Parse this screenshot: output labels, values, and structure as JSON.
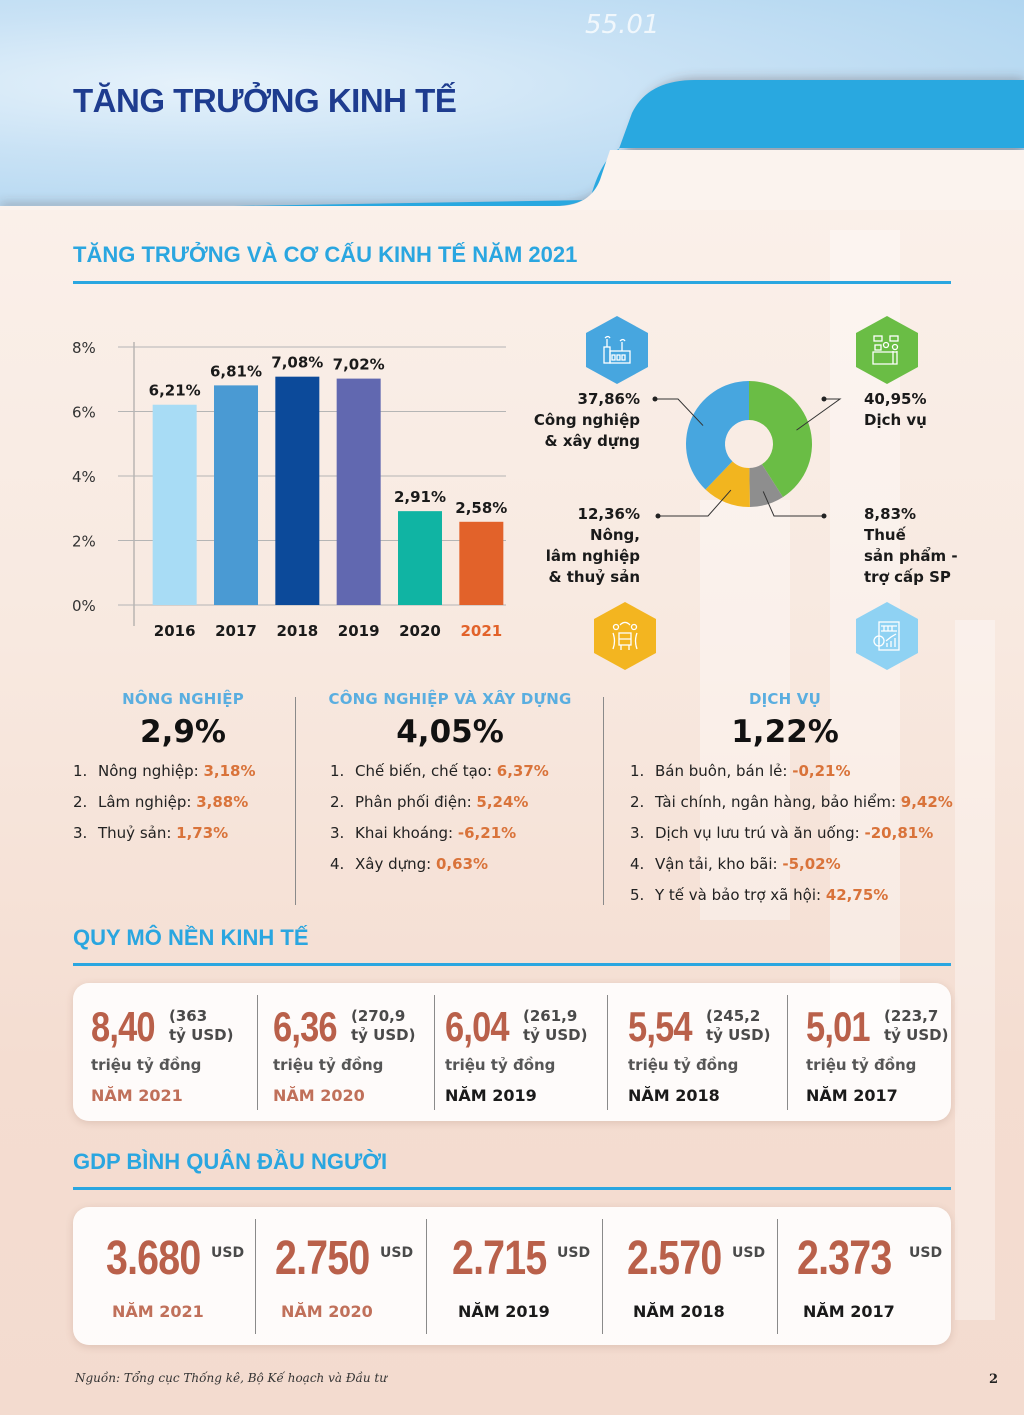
{
  "header": {
    "title": "TĂNG TRƯỞNG KINH TẾ",
    "decor_number": "55.01",
    "accent_color": "#29a8e0",
    "title_color": "#1e3c8f"
  },
  "section1": {
    "title": "TĂNG TRƯỞNG VÀ CƠ CẤU KINH TẾ NĂM 2021"
  },
  "chart_data": [
    {
      "type": "bar",
      "title": "",
      "xlabel": "",
      "ylabel": "",
      "categories": [
        "2016",
        "2017",
        "2018",
        "2019",
        "2020",
        "2021"
      ],
      "values": [
        6.21,
        6.81,
        7.08,
        7.02,
        2.91,
        2.58
      ],
      "value_labels": [
        "6,21%",
        "6,81%",
        "7,08%",
        "7,02%",
        "2,91%",
        "2,58%"
      ],
      "colors": [
        "#a8dcf5",
        "#4a9ad3",
        "#0c4a9a",
        "#6168b0",
        "#10b4a3",
        "#e2622a"
      ],
      "highlight_category": "2021",
      "highlight_color": "#e2622a",
      "ylim": [
        0,
        8
      ],
      "yticks": [
        0,
        2,
        4,
        6,
        8
      ],
      "ytick_labels": [
        "0%",
        "2%",
        "4%",
        "6%",
        "8%"
      ],
      "grid": true,
      "legend": "none"
    },
    {
      "type": "pie",
      "donut": true,
      "title": "",
      "slices": [
        {
          "label": "Dịch vụ",
          "value": 40.95,
          "value_label": "40,95%",
          "color": "#6abd45",
          "icon": "service-desk-icon",
          "icon_color": "#6abd45"
        },
        {
          "label": "Thuế sản phẩm - trợ cấp SP",
          "value": 8.83,
          "value_label": "8,83%",
          "color": "#8e8e8e",
          "icon": "finance-chart-icon",
          "icon_color": "#8fd2f3"
        },
        {
          "label": "Nông, lâm nghiệp & thuỷ sản",
          "value": 12.36,
          "value_label": "12,36%",
          "color": "#f2b51f",
          "icon": "agriculture-icon",
          "icon_color": "#f3b520"
        },
        {
          "label": "Công nghiệp & xây dựng",
          "value": 37.86,
          "value_label": "37,86%",
          "color": "#47a6df",
          "icon": "factory-icon",
          "icon_color": "#47a6df"
        }
      ],
      "legend": "callouts"
    }
  ],
  "donut_labels": {
    "industry": {
      "value": "37,86%",
      "lines": [
        "Công nghiệp",
        "& xây dựng"
      ]
    },
    "services": {
      "value": "40,95%",
      "lines": [
        "Dịch vụ"
      ]
    },
    "agriculture": {
      "value": "12,36%",
      "lines": [
        "Nông,",
        "lâm nghiệp",
        "& thuỷ sản"
      ]
    },
    "tax": {
      "value": "8,83%",
      "lines": [
        "Thuế",
        "sản phẩm -",
        "trợ cấp SP"
      ]
    }
  },
  "sectors": [
    {
      "name": "NÔNG NGHIỆP",
      "value": "2,9%",
      "items": [
        {
          "num": "1.",
          "label": "Nông nghiệp: ",
          "value": "3,18%"
        },
        {
          "num": "2.",
          "label": "Lâm nghiệp: ",
          "value": "3,88%"
        },
        {
          "num": "3.",
          "label": "Thuỷ sản: ",
          "value": "1,73%"
        }
      ]
    },
    {
      "name": "CÔNG NGHIỆP VÀ XÂY DỰNG",
      "value": "4,05%",
      "items": [
        {
          "num": "1.",
          "label": "Chế biến, chế tạo: ",
          "value": "6,37%"
        },
        {
          "num": "2.",
          "label": "Phân phối điện: ",
          "value": "5,24%"
        },
        {
          "num": "3.",
          "label": "Khai khoáng: ",
          "value": "-6,21%"
        },
        {
          "num": "4.",
          "label": "Xây dựng: ",
          "value": "0,63%"
        }
      ]
    },
    {
      "name": "DỊCH VỤ",
      "value": "1,22%",
      "items": [
        {
          "num": "1.",
          "label": "Bán buôn, bán lẻ: ",
          "value": "-0,21%"
        },
        {
          "num": "2.",
          "label": "Tài chính, ngân hàng, bảo hiểm: ",
          "value": "9,42%"
        },
        {
          "num": "3.",
          "label": "Dịch vụ lưu trú và ăn uống: ",
          "value": "-20,81%"
        },
        {
          "num": "4.",
          "label": "Vận tải, kho bãi: ",
          "value": "-5,02%"
        },
        {
          "num": "5.",
          "label": "Y tế và bảo trợ xã hội: ",
          "value": "42,75%"
        }
      ]
    }
  ],
  "economy_scale": {
    "title": "QUY MÔ NỀN KINH TẾ",
    "unit": "triệu tỷ đồng",
    "items": [
      {
        "value": "8,40",
        "usd_line1": "(363",
        "usd_line2": "tỷ USD)",
        "year": "NĂM 2021",
        "highlight": true
      },
      {
        "value": "6,36",
        "usd_line1": "(270,9",
        "usd_line2": "tỷ USD)",
        "year": "NĂM 2020",
        "highlight": true
      },
      {
        "value": "6,04",
        "usd_line1": "(261,9",
        "usd_line2": "tỷ USD)",
        "year": "NĂM 2019",
        "highlight": false
      },
      {
        "value": "5,54",
        "usd_line1": "(245,2",
        "usd_line2": "tỷ USD)",
        "year": "NĂM 2018",
        "highlight": false
      },
      {
        "value": "5,01",
        "usd_line1": "(223,7",
        "usd_line2": "tỷ USD)",
        "year": "NĂM 2017",
        "highlight": false
      }
    ]
  },
  "gdp_per_capita": {
    "title": "GDP BÌNH QUÂN ĐẦU NGƯỜI",
    "currency": "USD",
    "items": [
      {
        "value": "3.680",
        "year": "NĂM 2021",
        "highlight": true
      },
      {
        "value": "2.750",
        "year": "NĂM 2020",
        "highlight": true
      },
      {
        "value": "2.715",
        "year": "NĂM 2019",
        "highlight": false
      },
      {
        "value": "2.570",
        "year": "NĂM 2018",
        "highlight": false
      },
      {
        "value": "2.373",
        "year": "NĂM 2017",
        "highlight": false
      }
    ]
  },
  "footer": {
    "source": "Nguồn: Tổng cục Thống kê, Bộ Kế hoạch và Đầu tư",
    "page_number": "2"
  },
  "colors": {
    "section_title": "#2aa6e0",
    "value_orange": "#d9733a",
    "big_number": "#b9604a"
  }
}
